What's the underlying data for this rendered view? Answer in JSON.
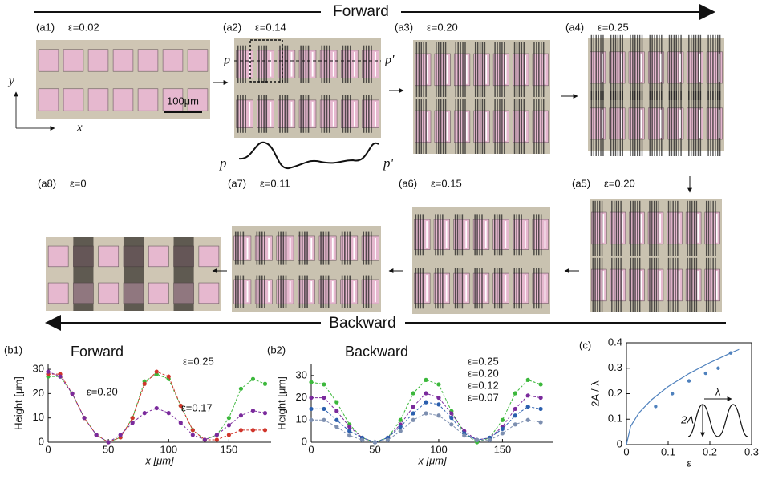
{
  "arrows": {
    "forward": "Forward",
    "backward": "Backward"
  },
  "panels": [
    {
      "label": "(a1)",
      "strain": "ε=0.02"
    },
    {
      "label": "(a2)",
      "strain": "ε=0.14"
    },
    {
      "label": "(a3)",
      "strain": "ε=0.20"
    },
    {
      "label": "(a4)",
      "strain": "ε=0.25"
    },
    {
      "label": "(a5)",
      "strain": "ε=0.20"
    },
    {
      "label": "(a6)",
      "strain": "ε=0.15"
    },
    {
      "label": "(a7)",
      "strain": "ε=0.11"
    },
    {
      "label": "(a8)",
      "strain": "ε=0"
    }
  ],
  "scale_bar": "100μm",
  "axis_x": "x",
  "axis_y": "y",
  "profile_start": "p",
  "profile_end": "p'",
  "chart_data": [
    {
      "type": "line",
      "panel": "(b1)",
      "title": "Forward",
      "xlabel": "x [μm]",
      "ylabel": "Height [μm]",
      "xlim": [
        0,
        185
      ],
      "ylim": [
        0,
        32
      ],
      "xticks": [
        0,
        50,
        100,
        150
      ],
      "yticks": [
        0,
        10,
        20,
        30
      ],
      "x": [
        0,
        10,
        20,
        30,
        40,
        50,
        60,
        70,
        80,
        90,
        100,
        110,
        120,
        130,
        140,
        150,
        160,
        170,
        180
      ],
      "series": [
        {
          "name": "ε=0.25",
          "color": "#3cb83c",
          "values": [
            27,
            27,
            20,
            10,
            3,
            0,
            2,
            10,
            25,
            28,
            26,
            15,
            5,
            1,
            3,
            10,
            22,
            26,
            24
          ]
        },
        {
          "name": "ε=0.20",
          "color": "#d0352b",
          "values": [
            28,
            28,
            20,
            10,
            3,
            0,
            2,
            10,
            24,
            29,
            27,
            15,
            5,
            1,
            1,
            3,
            5,
            5,
            5
          ]
        },
        {
          "name": "ε=0.17",
          "color": "#7a2a9c",
          "values": [
            29,
            27,
            20,
            10,
            3,
            0,
            3,
            8,
            12,
            14,
            12,
            8,
            3,
            1,
            3,
            7,
            11,
            13,
            12
          ]
        }
      ]
    },
    {
      "type": "line",
      "panel": "(b2)",
      "title": "Backward",
      "xlabel": "x [μm]",
      "ylabel": "Height [μm]",
      "xlim": [
        0,
        190
      ],
      "ylim": [
        0,
        35
      ],
      "xticks": [
        0,
        50,
        100,
        150
      ],
      "yticks": [
        0,
        10,
        20,
        30
      ],
      "x": [
        0,
        10,
        20,
        30,
        40,
        50,
        60,
        70,
        80,
        90,
        100,
        110,
        120,
        130,
        140,
        150,
        160,
        170,
        180
      ],
      "series": [
        {
          "name": "ε=0.25",
          "color": "#3cb83c",
          "values": [
            27,
            26,
            18,
            8,
            2,
            0,
            2,
            10,
            22,
            28,
            26,
            14,
            4,
            0,
            2,
            10,
            22,
            28,
            26
          ]
        },
        {
          "name": "ε=0.20",
          "color": "#7a2a9c",
          "values": [
            20,
            20,
            14,
            7,
            2,
            0,
            2,
            8,
            16,
            22,
            20,
            13,
            5,
            1,
            2,
            7,
            15,
            21,
            20
          ]
        },
        {
          "name": "ε=0.12",
          "color": "#2b5fae",
          "values": [
            15,
            15,
            10,
            5,
            2,
            0,
            2,
            7,
            13,
            18,
            17,
            11,
            4,
            1,
            2,
            6,
            12,
            16,
            15
          ]
        },
        {
          "name": "ε=0.07",
          "color": "#7d8fb0",
          "values": [
            10,
            10,
            7,
            3,
            1,
            0,
            1,
            5,
            10,
            13,
            12,
            8,
            3,
            1,
            1,
            4,
            8,
            10,
            9
          ]
        }
      ]
    },
    {
      "type": "scatter",
      "panel": "(c)",
      "xlabel": "ε",
      "ylabel": "2A / λ",
      "xlim": [
        0,
        0.3
      ],
      "ylim": [
        0,
        0.4
      ],
      "xticks": [
        0,
        0.1,
        0.2,
        0.3
      ],
      "yticks": [
        0,
        0.1,
        0.2,
        0.3,
        0.4
      ],
      "x": [
        0.07,
        0.11,
        0.15,
        0.19,
        0.22,
        0.25
      ],
      "values": [
        0.15,
        0.2,
        0.25,
        0.28,
        0.3,
        0.36
      ],
      "color": "#4f81bd",
      "fit_line": {
        "x": [
          0,
          0.01,
          0.03,
          0.06,
          0.1,
          0.15,
          0.2,
          0.25,
          0.27
        ],
        "values": [
          0,
          0.072,
          0.125,
          0.176,
          0.228,
          0.279,
          0.322,
          0.36,
          0.374
        ],
        "color": "#4f81bd"
      },
      "inset_labels": {
        "wavelength": "λ",
        "amplitude": "2A"
      }
    }
  ]
}
